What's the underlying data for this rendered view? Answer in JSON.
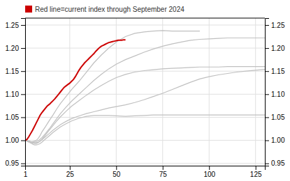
{
  "chart_data": {
    "type": "line",
    "series": [
      {
        "color": "#c0c0c0",
        "x": [
          1,
          2,
          3,
          4,
          5,
          6,
          7,
          8,
          9,
          10,
          12,
          14,
          16,
          18,
          20,
          23,
          26,
          30,
          34,
          38,
          42,
          46,
          50,
          55,
          60,
          65,
          70,
          75,
          80,
          85,
          90,
          95
        ],
        "values": [
          1.0,
          0.999,
          0.998,
          0.997,
          0.997,
          0.998,
          1.0,
          1.004,
          1.01,
          1.018,
          1.03,
          1.043,
          1.055,
          1.068,
          1.08,
          1.095,
          1.11,
          1.128,
          1.148,
          1.168,
          1.185,
          1.2,
          1.213,
          1.225,
          1.232,
          1.235,
          1.237,
          1.238,
          1.237,
          1.237,
          1.237,
          1.237
        ]
      },
      {
        "color": "#c0c0c0",
        "x": [
          1,
          2,
          3,
          4,
          5,
          6,
          7,
          8,
          9,
          10,
          12,
          14,
          16,
          18,
          20,
          23,
          26,
          30,
          34,
          38,
          42,
          46,
          50,
          55,
          60,
          65,
          70,
          75,
          80,
          85,
          90,
          95,
          100,
          105,
          110,
          115,
          120,
          125,
          130
        ],
        "values": [
          1.0,
          0.999,
          0.998,
          0.997,
          0.996,
          0.996,
          0.997,
          0.999,
          1.002,
          1.006,
          1.015,
          1.025,
          1.036,
          1.047,
          1.058,
          1.072,
          1.085,
          1.1,
          1.115,
          1.13,
          1.143,
          1.155,
          1.165,
          1.175,
          1.183,
          1.191,
          1.198,
          1.204,
          1.209,
          1.213,
          1.217,
          1.219,
          1.22,
          1.221,
          1.222,
          1.222,
          1.222,
          1.222,
          1.222
        ]
      },
      {
        "color": "#c0c0c0",
        "x": [
          1,
          2,
          3,
          4,
          5,
          6,
          7,
          8,
          9,
          10,
          12,
          14,
          16,
          18,
          20,
          23,
          26,
          30,
          34,
          38,
          42,
          46,
          50,
          55,
          60,
          65,
          70,
          75,
          80,
          85,
          90,
          95,
          100,
          105,
          110,
          115,
          120,
          125,
          130
        ],
        "values": [
          1.0,
          0.999,
          0.998,
          0.996,
          0.994,
          0.993,
          0.993,
          0.995,
          0.998,
          1.002,
          1.012,
          1.022,
          1.032,
          1.042,
          1.051,
          1.063,
          1.074,
          1.086,
          1.098,
          1.109,
          1.119,
          1.128,
          1.136,
          1.143,
          1.148,
          1.151,
          1.153,
          1.155,
          1.156,
          1.157,
          1.158,
          1.159,
          1.159,
          1.159,
          1.16,
          1.16,
          1.16,
          1.16,
          1.16
        ]
      },
      {
        "color": "#c0c0c0",
        "x": [
          1,
          2,
          3,
          4,
          5,
          6,
          7,
          8,
          9,
          10,
          12,
          14,
          16,
          18,
          20,
          23,
          26,
          30,
          34,
          38,
          42,
          46,
          50,
          55,
          60,
          65,
          70,
          75,
          80,
          85,
          90,
          95,
          100,
          105,
          110,
          115,
          120,
          125,
          130
        ],
        "values": [
          1.0,
          0.998,
          0.996,
          0.994,
          0.992,
          0.99,
          0.99,
          0.991,
          0.993,
          0.996,
          1.003,
          1.01,
          1.017,
          1.023,
          1.029,
          1.036,
          1.042,
          1.048,
          1.052,
          1.054,
          1.054,
          1.054,
          1.053,
          1.052,
          1.053,
          1.054,
          1.055,
          1.055,
          1.055,
          1.055,
          1.055,
          1.055,
          1.055,
          1.055,
          1.055,
          1.055,
          1.055,
          1.055,
          1.055
        ]
      },
      {
        "color": "#c0c0c0",
        "x": [
          1,
          2,
          3,
          4,
          5,
          6,
          7,
          8,
          9,
          10,
          12,
          14,
          16,
          18,
          20,
          23,
          26,
          30,
          34,
          38,
          42,
          46,
          50,
          55,
          60,
          65,
          70,
          75,
          80,
          85,
          90,
          95,
          100,
          105,
          110,
          115,
          120,
          125,
          130
        ],
        "values": [
          1.0,
          0.999,
          0.998,
          0.997,
          0.996,
          0.995,
          0.995,
          0.996,
          0.998,
          1.001,
          1.008,
          1.015,
          1.022,
          1.028,
          1.034,
          1.041,
          1.047,
          1.053,
          1.058,
          1.062,
          1.066,
          1.07,
          1.073,
          1.077,
          1.082,
          1.088,
          1.095,
          1.102,
          1.11,
          1.118,
          1.126,
          1.133,
          1.138,
          1.142,
          1.145,
          1.148,
          1.15,
          1.152,
          1.154
        ]
      },
      {
        "name": "Red line=current index through September 2024",
        "color": "#cc0000",
        "x": [
          1,
          2,
          3,
          4,
          5,
          6,
          7,
          8,
          9,
          10,
          11,
          12,
          13,
          14,
          15,
          16,
          17,
          18,
          19,
          20,
          21,
          22,
          23,
          24,
          25,
          26,
          27,
          28,
          29,
          30,
          31,
          32,
          33,
          34,
          35,
          36,
          37,
          38,
          39,
          40,
          41,
          42,
          43,
          44,
          45,
          46,
          47,
          48,
          49,
          50,
          51,
          52,
          53,
          54,
          55
        ],
        "values": [
          1.0,
          1.002,
          1.008,
          1.015,
          1.022,
          1.03,
          1.038,
          1.046,
          1.054,
          1.06,
          1.065,
          1.07,
          1.075,
          1.078,
          1.082,
          1.086,
          1.09,
          1.095,
          1.1,
          1.105,
          1.11,
          1.115,
          1.118,
          1.121,
          1.124,
          1.128,
          1.132,
          1.138,
          1.145,
          1.152,
          1.158,
          1.163,
          1.168,
          1.172,
          1.176,
          1.18,
          1.184,
          1.188,
          1.193,
          1.197,
          1.201,
          1.204,
          1.206,
          1.208,
          1.21,
          1.212,
          1.213,
          1.214,
          1.215,
          1.216,
          1.217,
          1.217,
          1.217,
          1.218,
          1.218
        ]
      }
    ],
    "xlim": [
      1,
      130
    ],
    "xticks": [
      1,
      25,
      50,
      75,
      100,
      125
    ],
    "ylim": [
      0.945,
      1.265
    ],
    "yticks": [
      0.95,
      {
        "value": 1.0,
        "label": "1.00"
      },
      1.05,
      {
        "value": 1.1,
        "label": "1.10"
      },
      1.15,
      {
        "value": 1.2,
        "label": "1.20"
      },
      1.25
    ],
    "y2lim": [
      0.945,
      1.265
    ],
    "y2ticks": [
      0.95,
      {
        "value": 1.0,
        "label": "1.00"
      },
      1.05,
      {
        "value": 1.1,
        "label": "1.10"
      },
      1.15,
      {
        "value": 1.2,
        "label": "1.20"
      },
      1.25
    ],
    "grid": true,
    "legend": "upper left"
  }
}
